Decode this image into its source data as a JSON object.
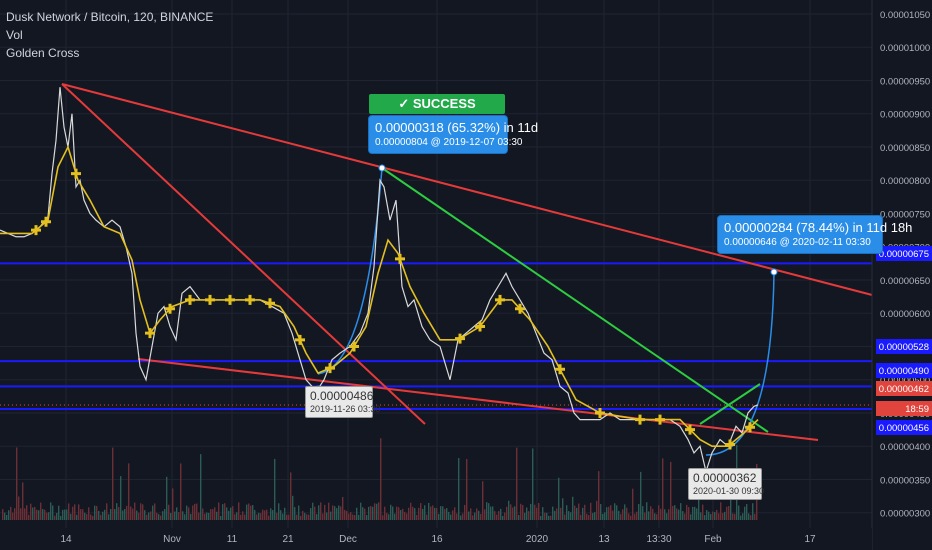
{
  "legend": {
    "title": "Dusk Network / Bitcoin, 120, BINANCE",
    "vol": "Vol",
    "indicator": "Golden Cross"
  },
  "annotations": {
    "success_label": "✓ SUCCESS",
    "callout1_main": "0.00000318 (65.32%) in 11d",
    "callout1_sub": "0.00000804 @ 2019-12-07  03:30",
    "callout2_main": "0.00000284 (78.44%) in 11d 18h",
    "callout2_sub": "0.00000646 @ 2020-02-11  03:30",
    "pivot1_main": "0.00000486",
    "pivot1_sub": "2019-11-26 03:30",
    "pivot2_main": "0.00000362",
    "pivot2_sub": "2020-01-30 09:30"
  },
  "chart_data": {
    "type": "line",
    "title": "Dusk Network / Bitcoin, 120, BINANCE",
    "xlabel": "",
    "ylabel": "",
    "ylim": [
      2.8e-06,
      1.05e-05
    ],
    "grid": true,
    "y_ticks": [
      "0.00001050",
      "0.00001000",
      "0.00000950",
      "0.00000900",
      "0.00000850",
      "0.00000800",
      "0.00000750",
      "0.00000700",
      "0.00000650",
      "0.00000600",
      "0.00000550",
      "0.00000500",
      "0.00000450",
      "0.00000400",
      "0.00000350",
      "0.00000300"
    ],
    "x_ticks": [
      "14",
      "Nov",
      "11",
      "21",
      "Dec",
      "16",
      "2020",
      "13",
      "13:30",
      "Feb",
      "17"
    ],
    "price_labels": [
      {
        "value": "0.00000675",
        "color": "#1a1aff"
      },
      {
        "value": "0.00000528",
        "color": "#1a1aff"
      },
      {
        "value": "0.00000490",
        "color": "#1a1aff"
      },
      {
        "value": "0.00000462",
        "color": "#e0443c"
      },
      {
        "value": "18:59",
        "color": "#e0443c"
      },
      {
        "value": "0.00000456",
        "color": "#1a1aff"
      }
    ],
    "horizontal_levels": [
      6.75e-06,
      5.28e-06,
      4.9e-06,
      4.56e-06
    ],
    "last_price": 4.62e-06,
    "series": [
      {
        "name": "Price",
        "color": "#d9d9d9",
        "points": [
          [
            0,
            7.25e-06
          ],
          [
            8,
            7.2e-06
          ],
          [
            16,
            7.15e-06
          ],
          [
            24,
            7.15e-06
          ],
          [
            32,
            7.2e-06
          ],
          [
            40,
            7.3e-06
          ],
          [
            48,
            7.45e-06
          ],
          [
            52,
            8.1e-06
          ],
          [
            56,
            8.6e-06
          ],
          [
            60,
            9.4e-06
          ],
          [
            64,
            8.8e-06
          ],
          [
            68,
            8.5e-06
          ],
          [
            72,
            9e-06
          ],
          [
            76,
            7.9e-06
          ],
          [
            80,
            8e-06
          ],
          [
            84,
            7.7e-06
          ],
          [
            90,
            7.5e-06
          ],
          [
            96,
            7.4e-06
          ],
          [
            104,
            7.3e-06
          ],
          [
            112,
            7.4e-06
          ],
          [
            120,
            7.3e-06
          ],
          [
            126,
            7e-06
          ],
          [
            132,
            6.6e-06
          ],
          [
            136,
            5.7e-06
          ],
          [
            140,
            5.2e-06
          ],
          [
            146,
            5e-06
          ],
          [
            152,
            5.5e-06
          ],
          [
            158,
            6e-06
          ],
          [
            164,
            6.1e-06
          ],
          [
            170,
            5.8e-06
          ],
          [
            176,
            5.6e-06
          ],
          [
            182,
            6.3e-06
          ],
          [
            190,
            6.4e-06
          ],
          [
            200,
            6.2e-06
          ],
          [
            212,
            6.2e-06
          ],
          [
            224,
            6.2e-06
          ],
          [
            236,
            6.2e-06
          ],
          [
            248,
            6.2e-06
          ],
          [
            260,
            6.2e-06
          ],
          [
            272,
            6.1e-06
          ],
          [
            284,
            6e-06
          ],
          [
            292,
            5.7e-06
          ],
          [
            300,
            5.3e-06
          ],
          [
            306,
            5e-06
          ],
          [
            312,
            4.9e-06
          ],
          [
            318,
            4.86e-06
          ],
          [
            324,
            5e-06
          ],
          [
            332,
            5.3e-06
          ],
          [
            340,
            5.4e-06
          ],
          [
            350,
            5.5e-06
          ],
          [
            360,
            5.7e-06
          ],
          [
            368,
            6e-06
          ],
          [
            374,
            6.7e-06
          ],
          [
            380,
            8e-06
          ],
          [
            384,
            7.9e-06
          ],
          [
            390,
            7.4e-06
          ],
          [
            396,
            7.7e-06
          ],
          [
            402,
            6.4e-06
          ],
          [
            408,
            6.1e-06
          ],
          [
            414,
            6.2e-06
          ],
          [
            422,
            5.8e-06
          ],
          [
            430,
            5.6e-06
          ],
          [
            440,
            5.5e-06
          ],
          [
            450,
            5e-06
          ],
          [
            458,
            5.6e-06
          ],
          [
            466,
            5.7e-06
          ],
          [
            474,
            5.8e-06
          ],
          [
            482,
            5.9e-06
          ],
          [
            490,
            6.2e-06
          ],
          [
            498,
            6.4e-06
          ],
          [
            506,
            6.6e-06
          ],
          [
            512,
            6.4e-06
          ],
          [
            520,
            6.2e-06
          ],
          [
            528,
            6e-06
          ],
          [
            536,
            5.7e-06
          ],
          [
            544,
            5.4e-06
          ],
          [
            552,
            5.3e-06
          ],
          [
            560,
            4.9e-06
          ],
          [
            568,
            4.8e-06
          ],
          [
            574,
            4.5e-06
          ],
          [
            580,
            4.4e-06
          ],
          [
            590,
            4.4e-06
          ],
          [
            600,
            4.4e-06
          ],
          [
            610,
            4.5e-06
          ],
          [
            620,
            4.4e-06
          ],
          [
            630,
            4.4e-06
          ],
          [
            640,
            4.4e-06
          ],
          [
            650,
            4.4e-06
          ],
          [
            660,
            4.4e-06
          ],
          [
            670,
            4.4e-06
          ],
          [
            680,
            4.3e-06
          ],
          [
            688,
            4.1e-06
          ],
          [
            694,
            3.9e-06
          ],
          [
            700,
            4e-06
          ],
          [
            706,
            3.62e-06
          ],
          [
            712,
            3.9e-06
          ],
          [
            720,
            4.1e-06
          ],
          [
            728,
            4e-06
          ],
          [
            736,
            4.3e-06
          ],
          [
            742,
            4.2e-06
          ],
          [
            748,
            4.5e-06
          ],
          [
            754,
            4.6e-06
          ],
          [
            758,
            4.62e-06
          ]
        ]
      },
      {
        "name": "MA",
        "color": "#e3c020",
        "points": [
          [
            0,
            7.2e-06
          ],
          [
            16,
            7.2e-06
          ],
          [
            32,
            7.2e-06
          ],
          [
            48,
            7.4e-06
          ],
          [
            58,
            8.2e-06
          ],
          [
            68,
            8.5e-06
          ],
          [
            78,
            8e-06
          ],
          [
            90,
            7.7e-06
          ],
          [
            104,
            7.3e-06
          ],
          [
            120,
            7.2e-06
          ],
          [
            132,
            6.8e-06
          ],
          [
            140,
            6.2e-06
          ],
          [
            150,
            5.7e-06
          ],
          [
            160,
            5.9e-06
          ],
          [
            172,
            6.1e-06
          ],
          [
            190,
            6.2e-06
          ],
          [
            220,
            6.2e-06
          ],
          [
            260,
            6.2e-06
          ],
          [
            280,
            6.1e-06
          ],
          [
            294,
            5.8e-06
          ],
          [
            306,
            5.4e-06
          ],
          [
            318,
            5.1e-06
          ],
          [
            334,
            5.2e-06
          ],
          [
            350,
            5.4e-06
          ],
          [
            366,
            5.8e-06
          ],
          [
            378,
            6.6e-06
          ],
          [
            388,
            7.1e-06
          ],
          [
            398,
            6.9e-06
          ],
          [
            410,
            6.4e-06
          ],
          [
            424,
            6e-06
          ],
          [
            440,
            5.6e-06
          ],
          [
            458,
            5.6e-06
          ],
          [
            480,
            5.8e-06
          ],
          [
            500,
            6.2e-06
          ],
          [
            512,
            6.2e-06
          ],
          [
            530,
            5.9e-06
          ],
          [
            548,
            5.5e-06
          ],
          [
            562,
            5.1e-06
          ],
          [
            576,
            4.7e-06
          ],
          [
            600,
            4.5e-06
          ],
          [
            640,
            4.4e-06
          ],
          [
            680,
            4.4e-06
          ],
          [
            700,
            4.1e-06
          ],
          [
            712,
            4e-06
          ],
          [
            728,
            4e-06
          ],
          [
            744,
            4.2e-06
          ],
          [
            758,
            4.4e-06
          ]
        ]
      }
    ]
  }
}
